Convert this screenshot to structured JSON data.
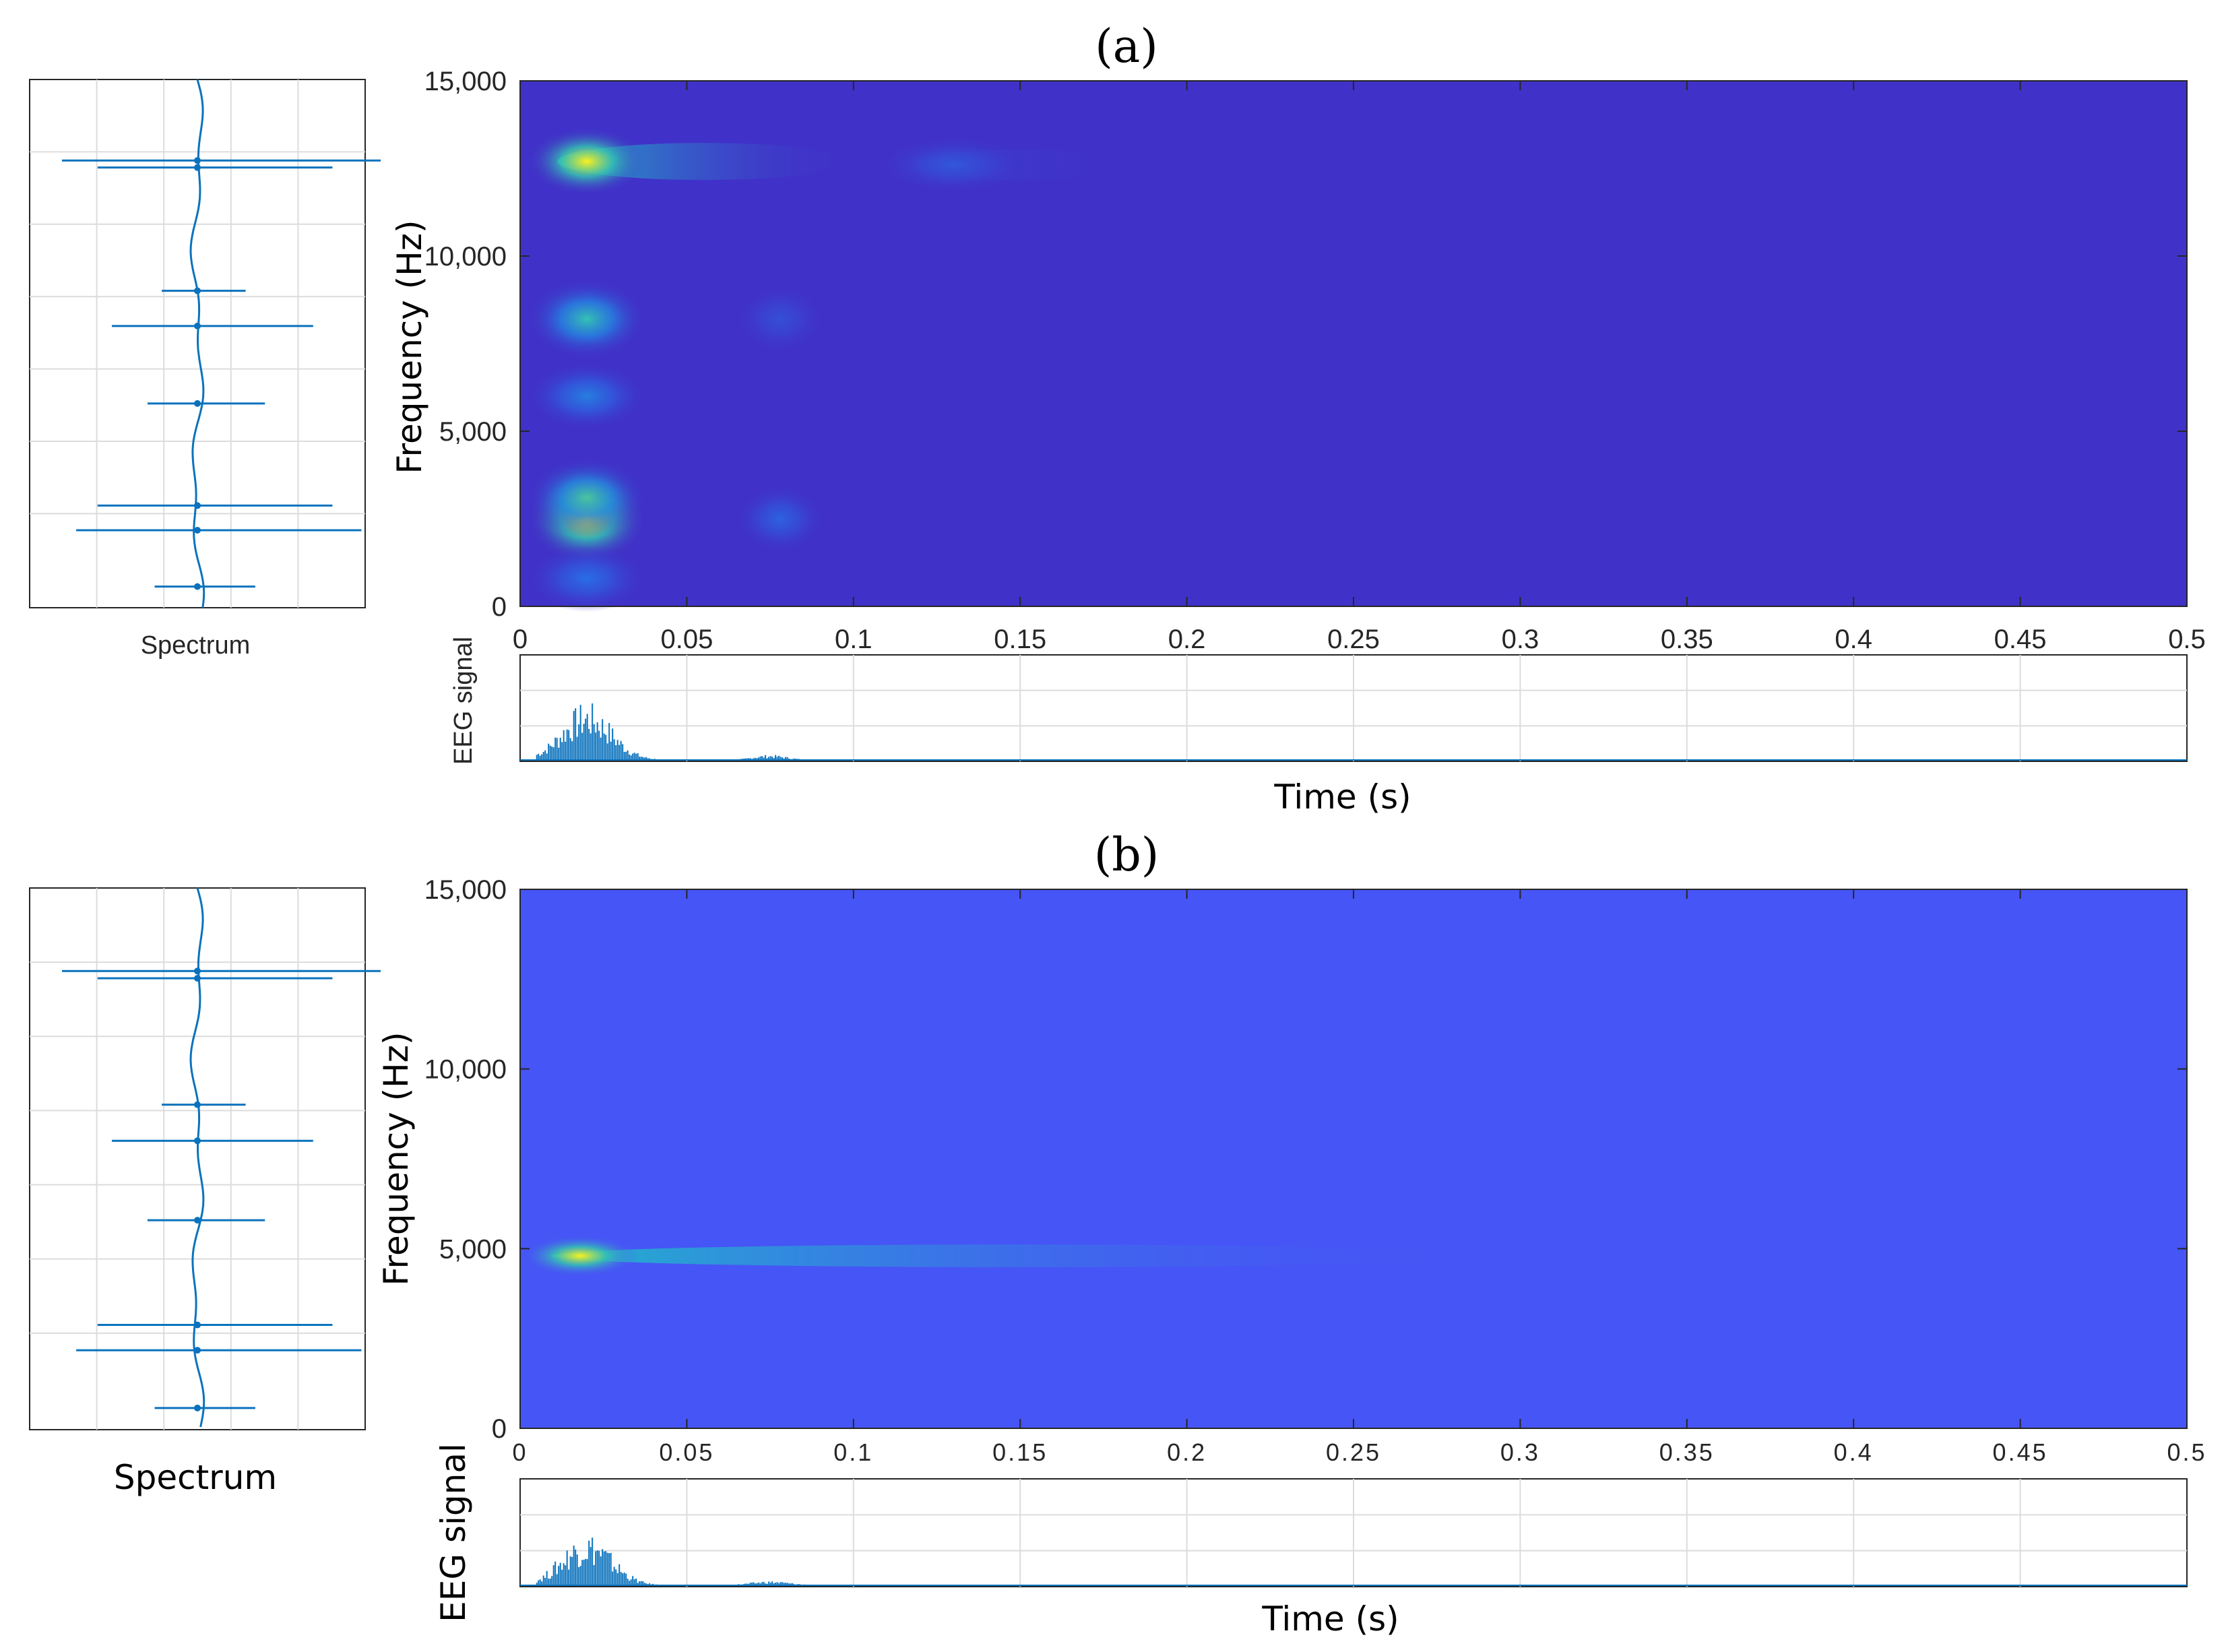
{
  "chart_data": [
    {
      "panel": "(a)",
      "type": "heatmap",
      "title": "(a)",
      "xlabel": "Time (s)",
      "ylabel": "Frequency  (Hz)",
      "xlim": [
        0,
        0.5
      ],
      "ylim": [
        0,
        15000
      ],
      "x_ticks": [
        "0",
        "0.05",
        "0.1",
        "0.15",
        "0.2",
        "0.25",
        "0.3",
        "0.35",
        "0.4",
        "0.45",
        "0.5"
      ],
      "y_ticks": [
        "0",
        "5,000",
        "10,000",
        "15,000"
      ],
      "background_color": "#4032c8",
      "hot_spots": [
        {
          "t": 0.02,
          "f": 12700,
          "intensity": 1.0,
          "t_width": 0.008,
          "f_width": 300,
          "tail_t": 0.09
        },
        {
          "t": 0.02,
          "f": 8200,
          "intensity": 0.55,
          "t_width": 0.008,
          "f_width": 350,
          "tail_t": 0
        },
        {
          "t": 0.02,
          "f": 6000,
          "intensity": 0.3,
          "t_width": 0.008,
          "f_width": 300,
          "tail_t": 0
        },
        {
          "t": 0.02,
          "f": 2500,
          "intensity": 1.0,
          "t_width": 0.008,
          "f_width": 400,
          "tail_t": 0
        },
        {
          "t": 0.02,
          "f": 3100,
          "intensity": 0.6,
          "t_width": 0.008,
          "f_width": 350,
          "tail_t": 0
        },
        {
          "t": 0.02,
          "f": 800,
          "intensity": 0.25,
          "t_width": 0.008,
          "f_width": 300,
          "tail_t": 0
        },
        {
          "t": 0.078,
          "f": 2500,
          "intensity": 0.2,
          "t_width": 0.006,
          "f_width": 300,
          "tail_t": 0
        },
        {
          "t": 0.078,
          "f": 8200,
          "intensity": 0.12,
          "t_width": 0.006,
          "f_width": 300,
          "tail_t": 0
        },
        {
          "t": 0.13,
          "f": 12600,
          "intensity": 0.15,
          "t_width": 0.01,
          "f_width": 250,
          "tail_t": 0.17
        }
      ],
      "side_panel_label": "Spectrum",
      "signal_label": "EEG signal",
      "signal_bursts": [
        {
          "t": 0.02,
          "amplitude": 0.55,
          "width": 0.015
        },
        {
          "t": 0.075,
          "amplitude": 0.05,
          "width": 0.01
        }
      ],
      "spectrum_peaks": [
        {
          "f": 12700,
          "length": 0.95
        },
        {
          "f": 12500,
          "length": 0.7
        },
        {
          "f": 9000,
          "length": 0.25
        },
        {
          "f": 8000,
          "length": 0.6
        },
        {
          "f": 5800,
          "length": 0.35
        },
        {
          "f": 2900,
          "length": 0.7
        },
        {
          "f": 2200,
          "length": 0.85
        },
        {
          "f": 600,
          "length": 0.3
        }
      ]
    },
    {
      "panel": "(b)",
      "type": "heatmap",
      "title": "(b)",
      "xlabel": "Time (s)",
      "ylabel": "Frequency  (Hz)",
      "xlim": [
        0,
        0.5
      ],
      "ylim": [
        0,
        15000
      ],
      "x_ticks": [
        "0",
        "0.05",
        "0.1",
        "0.15",
        "0.2",
        "0.25",
        "0.3",
        "0.35",
        "0.4",
        "0.45",
        "0.5"
      ],
      "y_ticks": [
        "0",
        "5,000",
        "10,000",
        "15,000"
      ],
      "background_color": "#4655f5",
      "hot_spots": [
        {
          "t": 0.018,
          "f": 4800,
          "intensity": 1.0,
          "t_width": 0.008,
          "f_width": 180,
          "tail_t": 0.28
        }
      ],
      "side_panel_label": "Spectrum",
      "signal_label": "EEG signal",
      "signal_bursts": [
        {
          "t": 0.02,
          "amplitude": 0.5,
          "width": 0.015
        },
        {
          "t": 0.075,
          "amplitude": 0.04,
          "width": 0.012
        }
      ],
      "spectrum_peaks": [
        {
          "f": 12700,
          "length": 0.95
        },
        {
          "f": 12500,
          "length": 0.7
        },
        {
          "f": 9000,
          "length": 0.25
        },
        {
          "f": 8000,
          "length": 0.6
        },
        {
          "f": 5800,
          "length": 0.35
        },
        {
          "f": 2900,
          "length": 0.7
        },
        {
          "f": 2200,
          "length": 0.85
        },
        {
          "f": 600,
          "length": 0.3
        }
      ]
    }
  ]
}
